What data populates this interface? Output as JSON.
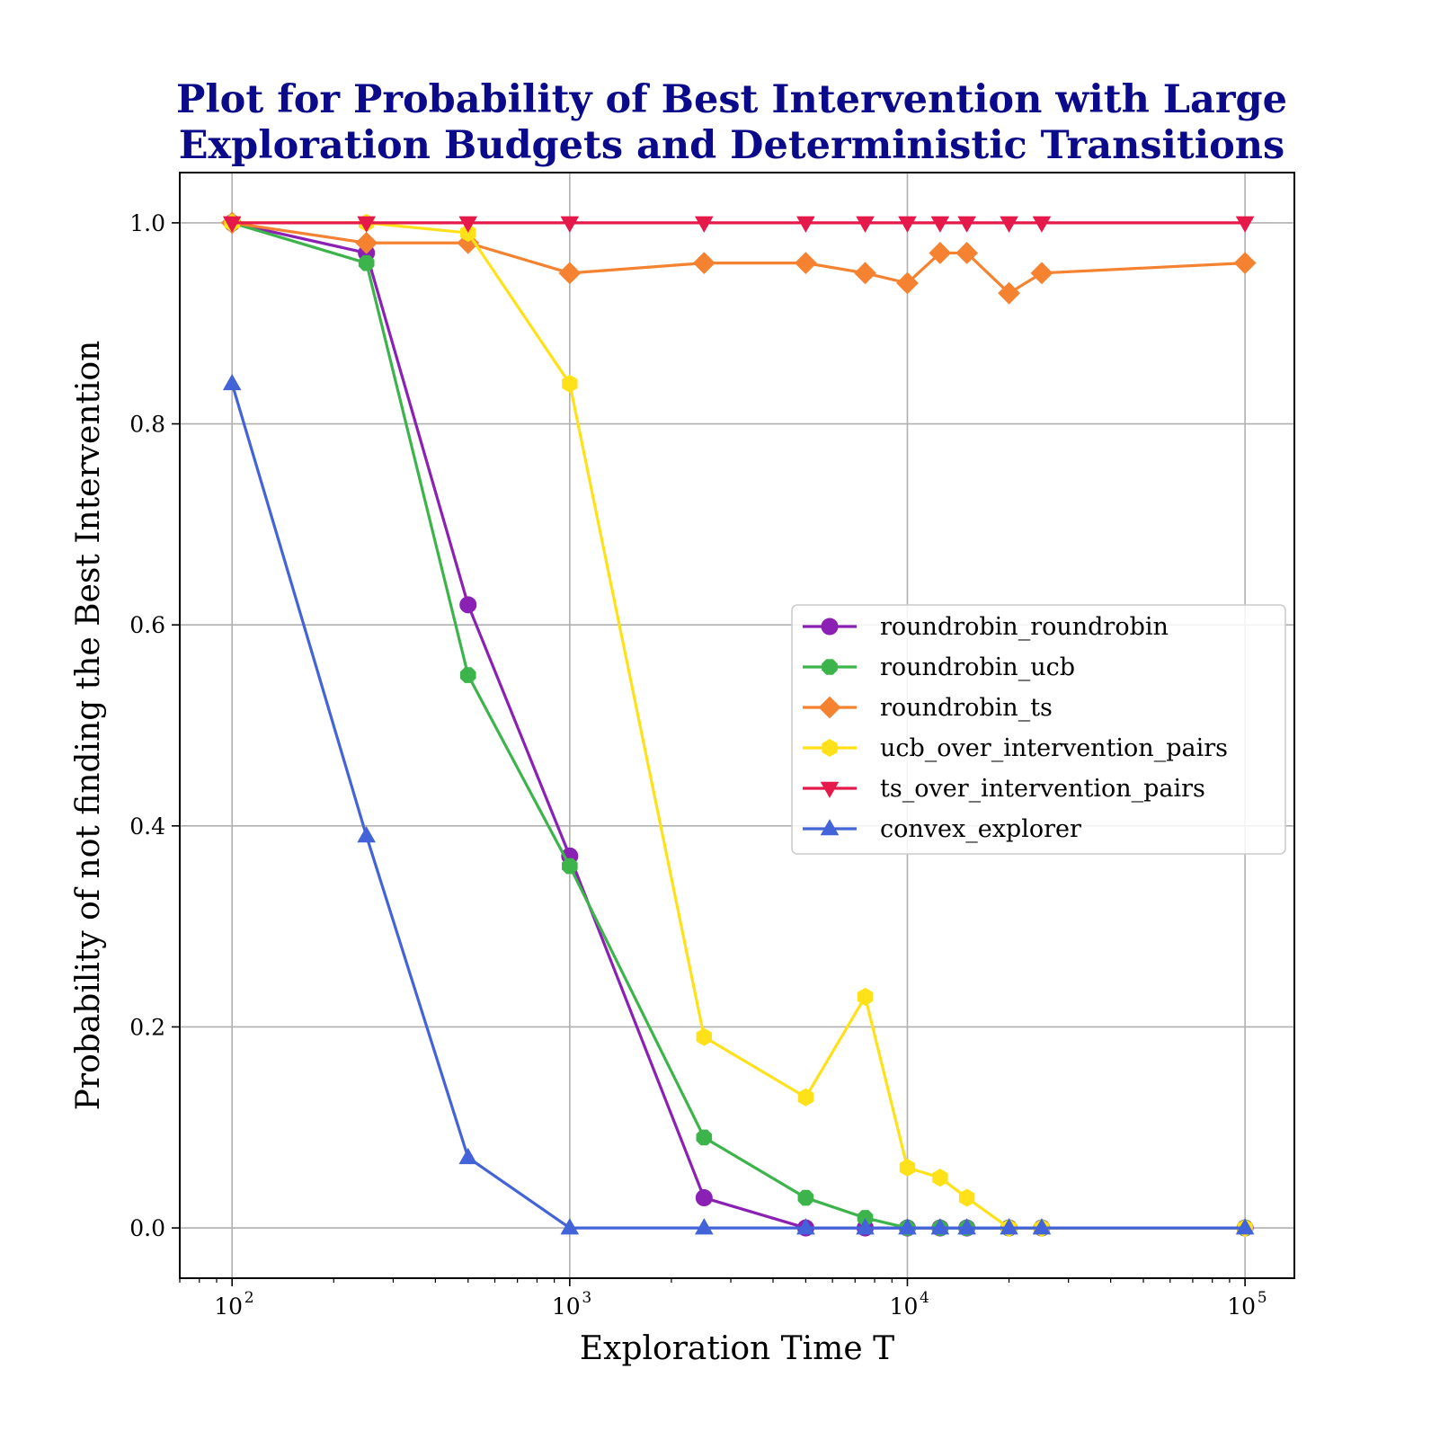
{
  "chart_data": {
    "type": "line",
    "title_lines": [
      "Plot for Probability of Best Intervention with Large",
      "Exploration Budgets and Deterministic Transitions"
    ],
    "title_color": "#0a0a8a",
    "xlabel": "Exploration Time T",
    "ylabel": "Probability of not finding the Best Intervention",
    "x_scale": "log",
    "xlim": [
      70,
      140000
    ],
    "ylim": [
      -0.05,
      1.05
    ],
    "x_major_ticks": [
      {
        "value": 100,
        "base": "10",
        "exp": "2"
      },
      {
        "value": 1000,
        "base": "10",
        "exp": "3"
      },
      {
        "value": 10000,
        "base": "10",
        "exp": "4"
      },
      {
        "value": 100000,
        "base": "10",
        "exp": "5"
      }
    ],
    "y_ticks": [
      0.0,
      0.2,
      0.4,
      0.6,
      0.8,
      1.0
    ],
    "y_tick_labels": [
      "0.0",
      "0.2",
      "0.4",
      "0.6",
      "0.8",
      "1.0"
    ],
    "grid": true,
    "legend_position": "center-right",
    "x": [
      100,
      250,
      500,
      1000,
      2500,
      5000,
      7500,
      10000,
      12500,
      15000,
      20000,
      25000,
      100000
    ],
    "series": [
      {
        "name": "roundrobin_roundrobin",
        "color": "#8b20b4",
        "marker": "circle",
        "values": [
          1.0,
          0.97,
          0.62,
          0.37,
          0.03,
          0.0,
          0.0,
          0.0,
          0.0,
          0.0,
          0.0,
          0.0,
          0.0
        ]
      },
      {
        "name": "roundrobin_ucb",
        "color": "#3cb44b",
        "marker": "octagon",
        "values": [
          1.0,
          0.96,
          0.55,
          0.36,
          0.09,
          0.03,
          0.01,
          0.0,
          0.0,
          0.0,
          0.0,
          0.0,
          0.0
        ]
      },
      {
        "name": "roundrobin_ts",
        "color": "#f58231",
        "marker": "diamond",
        "values": [
          1.0,
          0.98,
          0.98,
          0.95,
          0.96,
          0.96,
          0.95,
          0.94,
          0.97,
          0.97,
          0.93,
          0.95,
          0.96
        ]
      },
      {
        "name": "ucb_over_intervention_pairs",
        "color": "#ffe119",
        "marker": "hexagon",
        "values": [
          1.0,
          1.0,
          0.99,
          0.84,
          0.19,
          0.13,
          0.23,
          0.06,
          0.05,
          0.03,
          0.0,
          0.0,
          0.0
        ]
      },
      {
        "name": "ts_over_intervention_pairs",
        "color": "#e6194b",
        "marker": "triangle-down",
        "values": [
          1.0,
          1.0,
          1.0,
          1.0,
          1.0,
          1.0,
          1.0,
          1.0,
          1.0,
          1.0,
          1.0,
          1.0,
          1.0
        ]
      },
      {
        "name": "convex_explorer",
        "color": "#4363d8",
        "marker": "triangle-up",
        "values": [
          0.84,
          0.39,
          0.07,
          0.0,
          0.0,
          0.0,
          0.0,
          0.0,
          0.0,
          0.0,
          0.0,
          0.0,
          0.0
        ]
      }
    ]
  }
}
